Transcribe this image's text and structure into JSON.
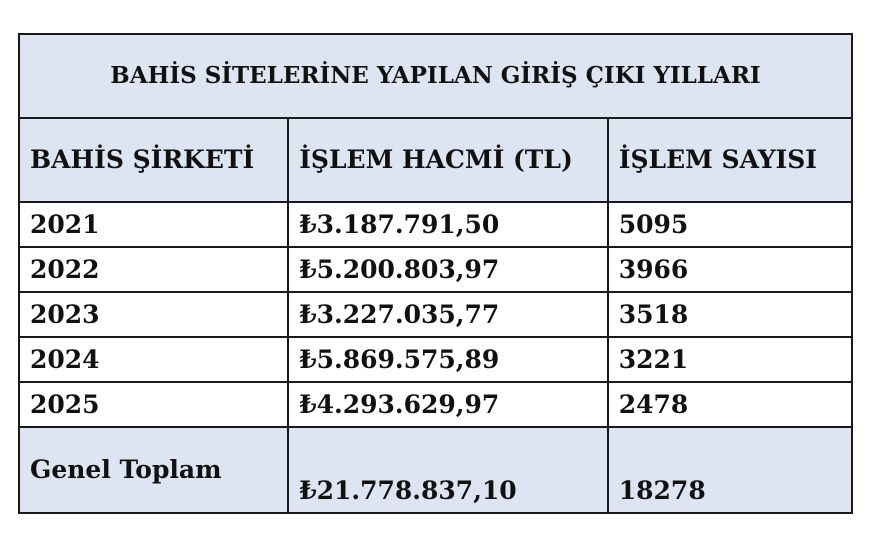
{
  "title": "BAHİS SİTELERİNE YAPILAN GİRİŞ ÇIKI YILLARI",
  "headers": [
    "BAHİS ŞİRKETİ",
    "İŞLEM HACMİ (TL)",
    "İŞLEM SAYISI"
  ],
  "rows": [
    {
      "year": "2021",
      "volume": "₺3.187.791,50",
      "count": "5095"
    },
    {
      "year": "2022",
      "volume": "₺5.200.803,97",
      "count": "3966"
    },
    {
      "year": "2023",
      "volume": "₺3.227.035,77",
      "count": "3518"
    },
    {
      "year": "2024",
      "volume": "₺5.869.575,89",
      "count": "3221"
    },
    {
      "year": "2025",
      "volume": "₺4.293.629,97",
      "count": "2478"
    }
  ],
  "total": {
    "label": "Genel Toplam",
    "volume": "₺21.778.837,10",
    "count": "18278"
  },
  "colors": {
    "header_bg": "#dce5f1",
    "border": "#1a1a1a"
  }
}
